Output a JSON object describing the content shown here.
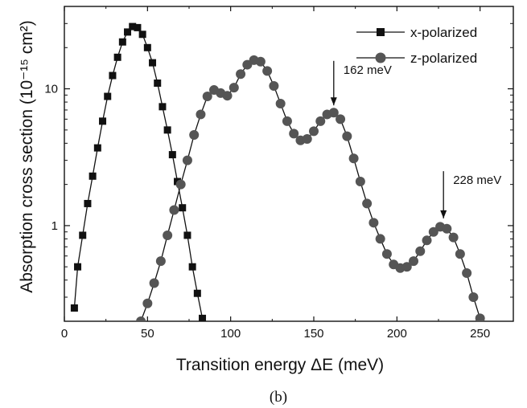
{
  "chart_data": {
    "type": "scatter",
    "log_y": true,
    "xlabel": "Transition energy ΔE (meV)",
    "ylabel": "Absorption cross section (10⁻¹⁵ cm²)",
    "xlim": [
      0,
      270
    ],
    "ylim": [
      0.2,
      40
    ],
    "x_ticks": [
      0,
      50,
      100,
      150,
      200,
      250
    ],
    "y_ticks": [
      1,
      10
    ],
    "caption": "(b)",
    "legend_position": "top-right",
    "series": [
      {
        "name": "x-polarized",
        "marker": "square",
        "color": "#111111",
        "x": [
          6,
          8,
          11,
          14,
          17,
          20,
          23,
          26,
          29,
          32,
          35,
          38,
          41,
          44,
          47,
          50,
          53,
          56,
          59,
          62,
          65,
          68,
          71,
          74,
          77,
          80,
          83
        ],
        "y": [
          0.25,
          0.5,
          0.85,
          1.45,
          2.3,
          3.7,
          5.8,
          8.8,
          12.5,
          17,
          22,
          26,
          28.5,
          28,
          25,
          20,
          15.5,
          11,
          7.4,
          5.0,
          3.3,
          2.1,
          1.35,
          0.85,
          0.5,
          0.32,
          0.21
        ]
      },
      {
        "name": "z-polarized",
        "marker": "circle",
        "color": "#555555",
        "x": [
          46,
          50,
          54,
          58,
          62,
          66,
          70,
          74,
          78,
          82,
          86,
          90,
          94,
          98,
          102,
          106,
          110,
          114,
          118,
          122,
          126,
          130,
          134,
          138,
          142,
          146,
          150,
          154,
          158,
          162,
          166,
          170,
          174,
          178,
          182,
          186,
          190,
          194,
          198,
          202,
          206,
          210,
          214,
          218,
          222,
          226,
          230,
          234,
          238,
          242,
          246,
          250
        ],
        "y": [
          0.2,
          0.27,
          0.38,
          0.55,
          0.85,
          1.3,
          2.0,
          3.0,
          4.6,
          6.5,
          8.8,
          9.8,
          9.3,
          8.9,
          10.2,
          12.8,
          15.0,
          16.2,
          15.8,
          13.5,
          10.5,
          7.8,
          5.8,
          4.7,
          4.2,
          4.3,
          4.9,
          5.8,
          6.5,
          6.7,
          6.0,
          4.5,
          3.1,
          2.1,
          1.45,
          1.05,
          0.8,
          0.62,
          0.52,
          0.49,
          0.5,
          0.55,
          0.65,
          0.78,
          0.9,
          0.98,
          0.95,
          0.82,
          0.62,
          0.45,
          0.3,
          0.21
        ]
      }
    ],
    "annotations": [
      {
        "text": "162 meV",
        "x": 162,
        "y": 6.7,
        "arrow_from_y": 16
      },
      {
        "text": "228 meV",
        "x": 228,
        "y": 1.0,
        "arrow_from_y": 2.5
      }
    ]
  }
}
